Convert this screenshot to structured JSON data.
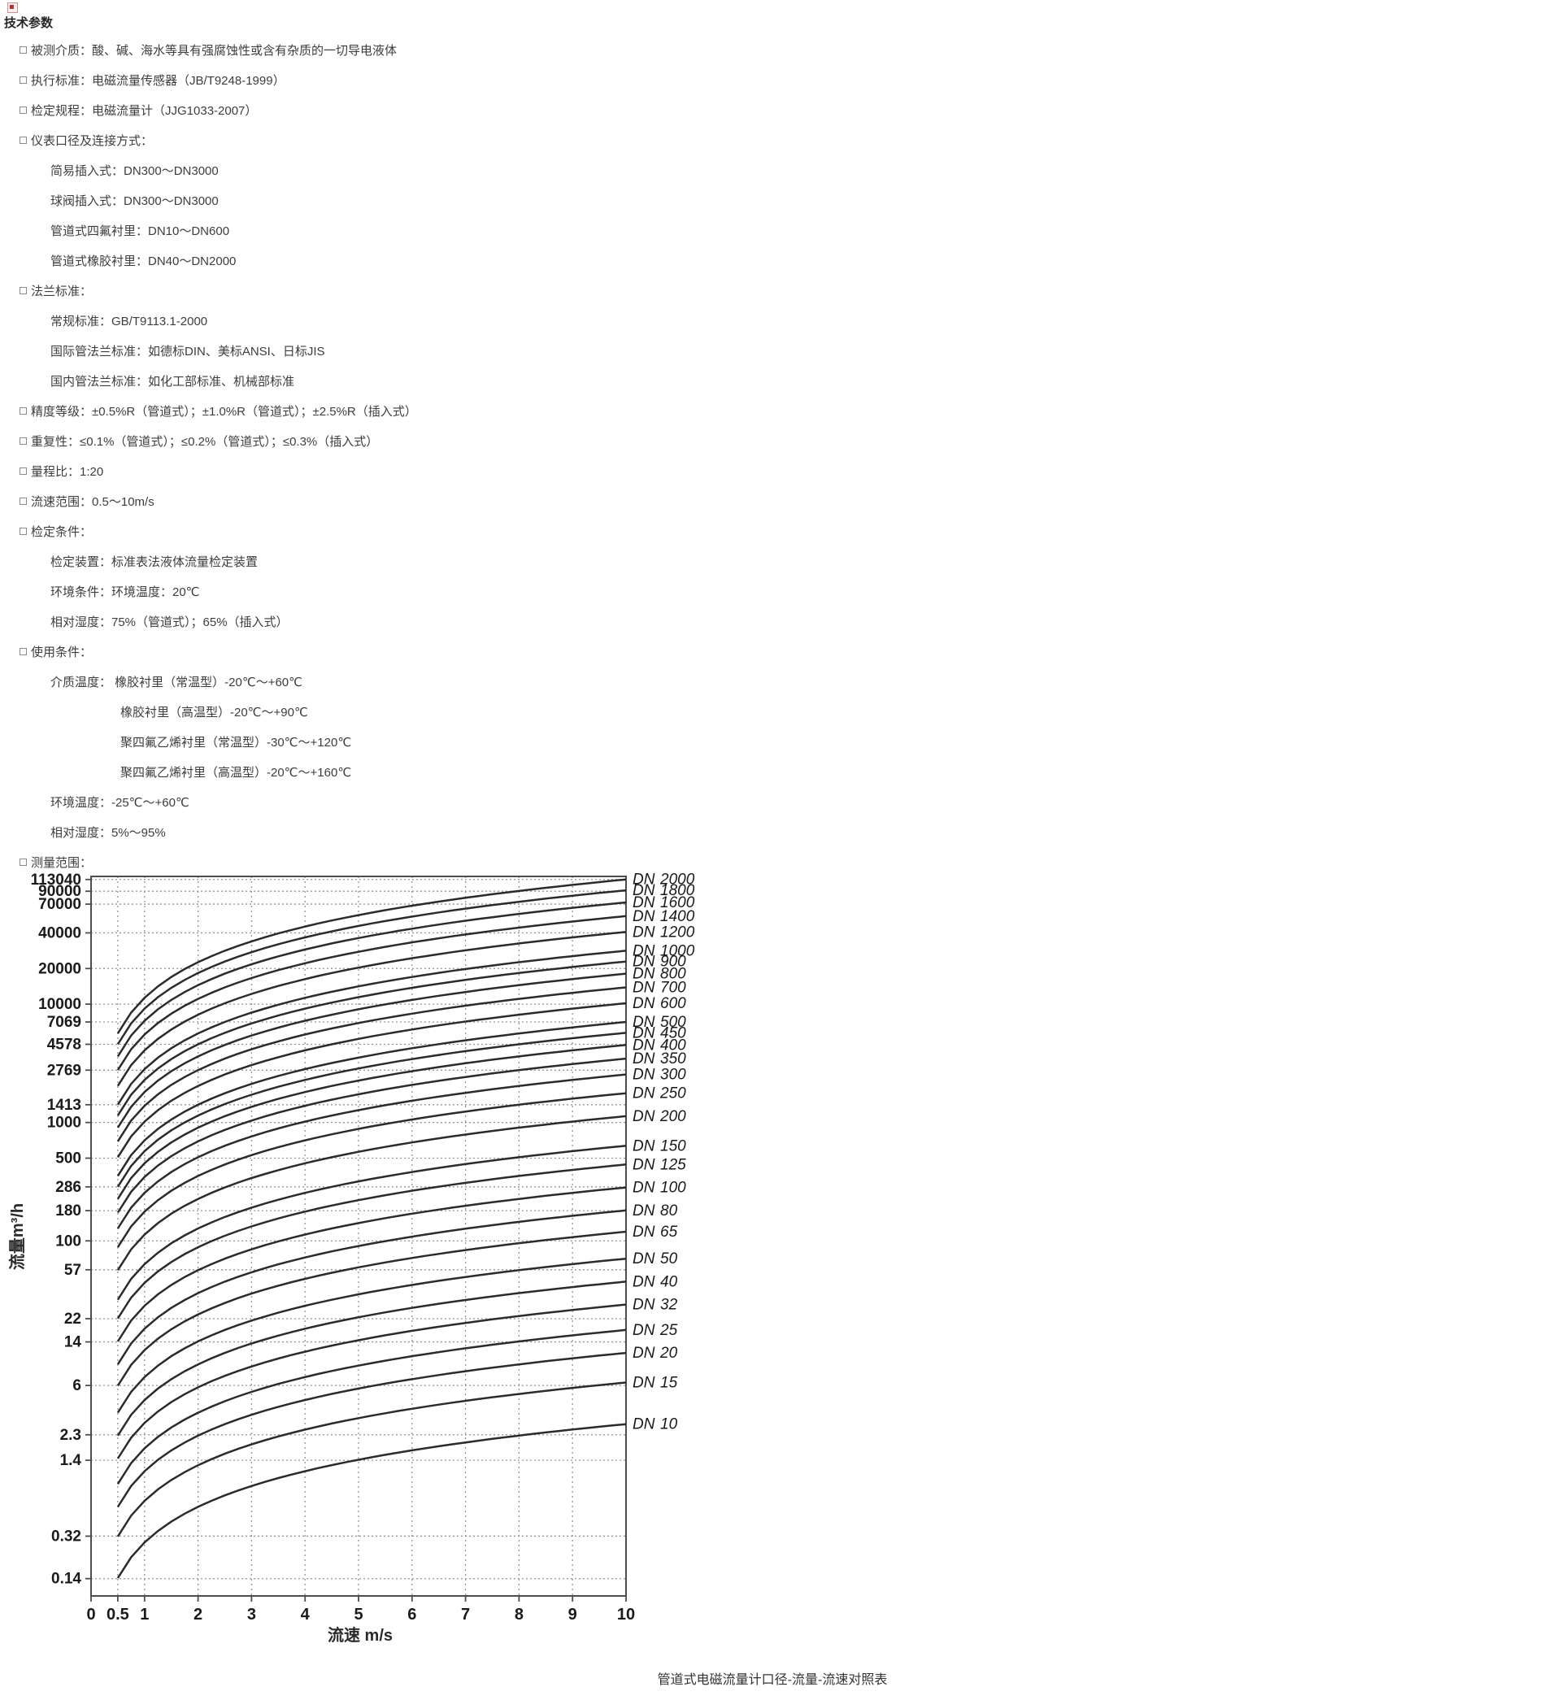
{
  "page": {
    "title": "技术参数",
    "caption": "管道式电磁流量计口径-流量-流速对照表",
    "icon": "broken-image-icon"
  },
  "specs": [
    {
      "level": 1,
      "text": "被测介质：酸、碱、海水等具有强腐蚀性或含有杂质的一切导电液体"
    },
    {
      "level": 1,
      "text": "执行标准：电磁流量传感器（JB/T9248-1999）"
    },
    {
      "level": 1,
      "text": "检定规程：电磁流量计（JJG1033-2007）"
    },
    {
      "level": 1,
      "text": "仪表口径及连接方式："
    },
    {
      "level": 2,
      "text": "简易插入式：DN300～DN3000"
    },
    {
      "level": 2,
      "text": "球阀插入式：DN300～DN3000"
    },
    {
      "level": 2,
      "text": "管道式四氟衬里：DN10～DN600"
    },
    {
      "level": 2,
      "text": "管道式橡胶衬里：DN40～DN2000"
    },
    {
      "level": 1,
      "text": "法兰标准："
    },
    {
      "level": 2,
      "text": "常规标准：GB/T9113.1-2000"
    },
    {
      "level": 2,
      "text": "国际管法兰标准：如德标DIN、美标ANSI、日标JIS"
    },
    {
      "level": 2,
      "text": "国内管法兰标准：如化工部标准、机械部标准"
    },
    {
      "level": 1,
      "text": "精度等级：±0.5%R（管道式）；±1.0%R（管道式）；±2.5%R（插入式）"
    },
    {
      "level": 1,
      "text": "重复性：≤0.1%（管道式）；≤0.2%（管道式）；≤0.3%（插入式）"
    },
    {
      "level": 1,
      "text": "量程比：1:20"
    },
    {
      "level": 1,
      "text": "流速范围：0.5～10m/s"
    },
    {
      "level": 1,
      "text": "检定条件："
    },
    {
      "level": 2,
      "text": "检定装置：标准表法液体流量检定装置"
    },
    {
      "level": 2,
      "text": "环境条件：环境温度：20℃"
    },
    {
      "level": 2,
      "text": "相对湿度：75%（管道式）；65%（插入式）"
    },
    {
      "level": 1,
      "text": "使用条件："
    },
    {
      "level": 2,
      "text": "介质温度： 橡胶衬里（常温型）-20℃～+60℃"
    },
    {
      "level": 3,
      "text": "橡胶衬里（高温型）-20℃～+90℃"
    },
    {
      "level": 3,
      "text": "聚四氟乙烯衬里（常温型）-30℃～+120℃"
    },
    {
      "level": 3,
      "text": "聚四氟乙烯衬里（高温型）-20℃～+160℃"
    },
    {
      "level": 2,
      "text": "环境温度：-25℃～+60℃"
    },
    {
      "level": 2,
      "text": "相对湿度：5%～95%"
    },
    {
      "level": 1,
      "text": "测量范围："
    }
  ],
  "chart_data": {
    "type": "line",
    "title": "",
    "xlabel": "流速 m/s",
    "ylabel": "流量m³/h",
    "xlim": [
      0,
      10
    ],
    "ylim": [
      0.1,
      120000
    ],
    "y_log_scale": true,
    "grid": true,
    "x_ticks": [
      "0",
      "0.5",
      "1",
      "2",
      "3",
      "4",
      "5",
      "6",
      "7",
      "8",
      "9",
      "10"
    ],
    "x_gridlines": [
      0.5,
      1,
      2,
      3,
      4,
      5,
      6,
      7,
      8,
      9
    ],
    "y_ticks": [
      "113040",
      "90000",
      "70000",
      "40000",
      "20000",
      "10000",
      "7069",
      "4578",
      "2769",
      "1413",
      "1000",
      "500",
      "286",
      "180",
      "100",
      "57",
      "22",
      "14",
      "6",
      "2.3",
      "1.4",
      "0.32",
      "0.14"
    ],
    "line_x_range": [
      0.5,
      10
    ],
    "legend_position": "right-of-line-ends",
    "series": [
      {
        "name": "DN 2000",
        "dn": 2000,
        "q_at_0_5": 5654.87,
        "q_at_10": 113097.34
      },
      {
        "name": "DN 1800",
        "dn": 1800,
        "q_at_0_5": 4580.44,
        "q_at_10": 91608.84
      },
      {
        "name": "DN 1600",
        "dn": 1600,
        "q_at_0_5": 3619.11,
        "q_at_10": 72382.29
      },
      {
        "name": "DN 1400",
        "dn": 1400,
        "q_at_0_5": 2770.88,
        "q_at_10": 55417.69
      },
      {
        "name": "DN 1200",
        "dn": 1200,
        "q_at_0_5": 2035.75,
        "q_at_10": 40715.04
      },
      {
        "name": "DN 1000",
        "dn": 1000,
        "q_at_0_5": 1413.72,
        "q_at_10": 28274.33
      },
      {
        "name": "DN 900",
        "dn": 900,
        "q_at_0_5": 1145.11,
        "q_at_10": 22902.21
      },
      {
        "name": "DN 800",
        "dn": 800,
        "q_at_0_5": 904.78,
        "q_at_10": 18095.57
      },
      {
        "name": "DN 700",
        "dn": 700,
        "q_at_0_5": 692.72,
        "q_at_10": 13854.42
      },
      {
        "name": "DN 600",
        "dn": 600,
        "q_at_0_5": 508.94,
        "q_at_10": 10178.76
      },
      {
        "name": "DN 500",
        "dn": 500,
        "q_at_0_5": 353.43,
        "q_at_10": 7068.58
      },
      {
        "name": "DN 450",
        "dn": 450,
        "q_at_0_5": 286.28,
        "q_at_10": 5725.55
      },
      {
        "name": "DN 400",
        "dn": 400,
        "q_at_0_5": 226.19,
        "q_at_10": 4523.89
      },
      {
        "name": "DN 350",
        "dn": 350,
        "q_at_0_5": 173.18,
        "q_at_10": 3463.61
      },
      {
        "name": "DN 300",
        "dn": 300,
        "q_at_0_5": 127.23,
        "q_at_10": 2544.69
      },
      {
        "name": "DN 250",
        "dn": 250,
        "q_at_0_5": 88.36,
        "q_at_10": 1767.15
      },
      {
        "name": "DN 200",
        "dn": 200,
        "q_at_0_5": 56.55,
        "q_at_10": 1130.97
      },
      {
        "name": "DN 150",
        "dn": 150,
        "q_at_0_5": 31.81,
        "q_at_10": 636.17
      },
      {
        "name": "DN 125",
        "dn": 125,
        "q_at_0_5": 22.09,
        "q_at_10": 441.79
      },
      {
        "name": "DN 100",
        "dn": 100,
        "q_at_0_5": 14.14,
        "q_at_10": 282.74
      },
      {
        "name": "DN 80",
        "dn": 80,
        "q_at_0_5": 9.05,
        "q_at_10": 180.96
      },
      {
        "name": "DN 65",
        "dn": 65,
        "q_at_0_5": 5.97,
        "q_at_10": 119.46
      },
      {
        "name": "DN 50",
        "dn": 50,
        "q_at_0_5": 3.53,
        "q_at_10": 70.69
      },
      {
        "name": "DN 40",
        "dn": 40,
        "q_at_0_5": 2.26,
        "q_at_10": 45.24
      },
      {
        "name": "DN 32",
        "dn": 32,
        "q_at_0_5": 1.45,
        "q_at_10": 28.95
      },
      {
        "name": "DN 25",
        "dn": 25,
        "q_at_0_5": 0.88,
        "q_at_10": 17.67
      },
      {
        "name": "DN 20",
        "dn": 20,
        "q_at_0_5": 0.57,
        "q_at_10": 11.31
      },
      {
        "name": "DN 15",
        "dn": 15,
        "q_at_0_5": 0.32,
        "q_at_10": 6.36
      },
      {
        "name": "DN 10",
        "dn": 10,
        "q_at_0_5": 0.14,
        "q_at_10": 2.83
      }
    ],
    "colors": {
      "line": "#2b2b2b",
      "grid": "#949494",
      "axis": "#4d4d4d",
      "text": "#1a1a1a"
    }
  }
}
